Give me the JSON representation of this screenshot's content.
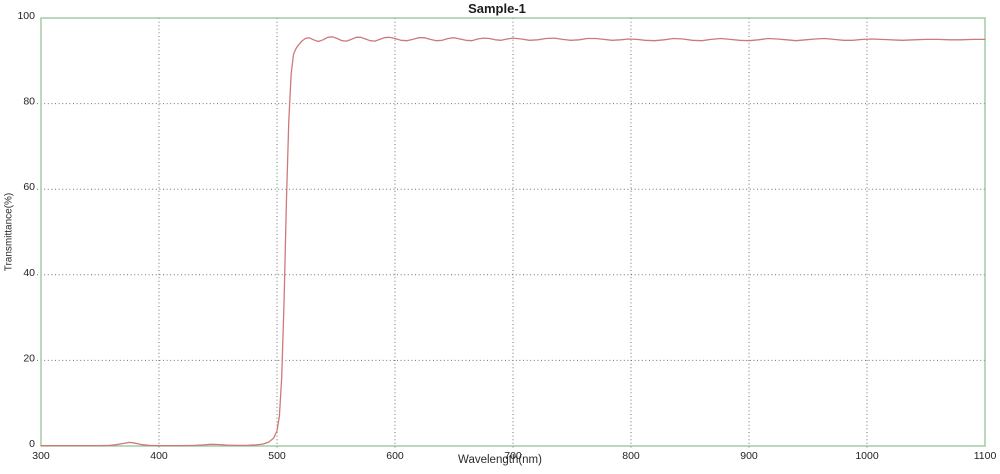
{
  "title": "Sample-1",
  "colors": {
    "background": "#ffffff",
    "axis_border": "#8cbd92",
    "grid_dots": "#62796c",
    "curve": "#ce7979",
    "text": "#1f1f1f"
  },
  "chart_data": {
    "type": "line",
    "title": "Sample-1",
    "xlabel": "Wavelength(nm)",
    "ylabel": "Transmittance(%)",
    "xlim": [
      300,
      1100
    ],
    "ylim": [
      0,
      100
    ],
    "x_ticks": [
      300,
      400,
      500,
      600,
      700,
      800,
      900,
      1000,
      1100
    ],
    "y_ticks": [
      0,
      20,
      40,
      60,
      80,
      100
    ],
    "grid": "dotted",
    "legend_position": "none",
    "description": "Long-pass filter transmittance spectrum: near 0% below 500 nm, sharp cut-on at ~505-515 nm, plateau rippling around 95% up to 1100 nm, tiny leakage bump near 375 nm",
    "series": [
      {
        "name": "Sample-1 transmittance",
        "color": "#ce7979",
        "points": [
          [
            300,
            0.1
          ],
          [
            310,
            0.1
          ],
          [
            320,
            0.1
          ],
          [
            330,
            0.1
          ],
          [
            340,
            0.1
          ],
          [
            350,
            0.1
          ],
          [
            358,
            0.15
          ],
          [
            364,
            0.3
          ],
          [
            370,
            0.6
          ],
          [
            375,
            0.85
          ],
          [
            380,
            0.65
          ],
          [
            386,
            0.3
          ],
          [
            392,
            0.15
          ],
          [
            400,
            0.1
          ],
          [
            410,
            0.1
          ],
          [
            420,
            0.1
          ],
          [
            430,
            0.15
          ],
          [
            438,
            0.25
          ],
          [
            444,
            0.4
          ],
          [
            450,
            0.35
          ],
          [
            458,
            0.2
          ],
          [
            466,
            0.15
          ],
          [
            474,
            0.15
          ],
          [
            482,
            0.25
          ],
          [
            488,
            0.45
          ],
          [
            493,
            0.9
          ],
          [
            497,
            1.8
          ],
          [
            500,
            3.5
          ],
          [
            502,
            7
          ],
          [
            504,
            16
          ],
          [
            506,
            34
          ],
          [
            508,
            57
          ],
          [
            510,
            76
          ],
          [
            512,
            87
          ],
          [
            514,
            91.5
          ],
          [
            516,
            92.8
          ],
          [
            518,
            93.6
          ],
          [
            521,
            94.6
          ],
          [
            524,
            95.2
          ],
          [
            527,
            95.4
          ],
          [
            531,
            94.9
          ],
          [
            535,
            94.5
          ],
          [
            539,
            94.9
          ],
          [
            543,
            95.5
          ],
          [
            547,
            95.6
          ],
          [
            551,
            95.2
          ],
          [
            555,
            94.7
          ],
          [
            559,
            94.6
          ],
          [
            563,
            95.0
          ],
          [
            567,
            95.5
          ],
          [
            571,
            95.5
          ],
          [
            575,
            95.1
          ],
          [
            579,
            94.7
          ],
          [
            583,
            94.6
          ],
          [
            587,
            95.0
          ],
          [
            591,
            95.4
          ],
          [
            595,
            95.5
          ],
          [
            600,
            95.2
          ],
          [
            605,
            94.8
          ],
          [
            610,
            94.7
          ],
          [
            615,
            95.0
          ],
          [
            620,
            95.4
          ],
          [
            625,
            95.4
          ],
          [
            630,
            95.0
          ],
          [
            635,
            94.7
          ],
          [
            640,
            94.8
          ],
          [
            645,
            95.2
          ],
          [
            650,
            95.4
          ],
          [
            655,
            95.1
          ],
          [
            660,
            94.8
          ],
          [
            665,
            94.7
          ],
          [
            670,
            95.1
          ],
          [
            675,
            95.3
          ],
          [
            680,
            95.2
          ],
          [
            685,
            94.9
          ],
          [
            690,
            94.8
          ],
          [
            695,
            95.1
          ],
          [
            700,
            95.3
          ],
          [
            707,
            95.1
          ],
          [
            714,
            94.8
          ],
          [
            721,
            94.9
          ],
          [
            728,
            95.2
          ],
          [
            735,
            95.3
          ],
          [
            742,
            95.0
          ],
          [
            749,
            94.8
          ],
          [
            756,
            94.9
          ],
          [
            763,
            95.2
          ],
          [
            770,
            95.2
          ],
          [
            777,
            95.0
          ],
          [
            784,
            94.8
          ],
          [
            791,
            94.9
          ],
          [
            798,
            95.1
          ],
          [
            805,
            95.0
          ],
          [
            812,
            94.8
          ],
          [
            820,
            94.7
          ],
          [
            828,
            94.9
          ],
          [
            836,
            95.2
          ],
          [
            844,
            95.1
          ],
          [
            852,
            94.8
          ],
          [
            860,
            94.7
          ],
          [
            868,
            95.0
          ],
          [
            876,
            95.2
          ],
          [
            884,
            95.0
          ],
          [
            892,
            94.8
          ],
          [
            900,
            94.7
          ],
          [
            908,
            94.9
          ],
          [
            916,
            95.2
          ],
          [
            924,
            95.1
          ],
          [
            932,
            94.9
          ],
          [
            940,
            94.7
          ],
          [
            948,
            94.9
          ],
          [
            956,
            95.1
          ],
          [
            964,
            95.2
          ],
          [
            972,
            95.0
          ],
          [
            980,
            94.8
          ],
          [
            988,
            94.8
          ],
          [
            996,
            95.0
          ],
          [
            1004,
            95.1
          ],
          [
            1012,
            95.0
          ],
          [
            1020,
            94.9
          ],
          [
            1030,
            94.8
          ],
          [
            1040,
            94.9
          ],
          [
            1050,
            95.0
          ],
          [
            1060,
            95.0
          ],
          [
            1070,
            94.9
          ],
          [
            1080,
            94.9
          ],
          [
            1090,
            95.0
          ],
          [
            1100,
            95.0
          ]
        ]
      }
    ]
  }
}
